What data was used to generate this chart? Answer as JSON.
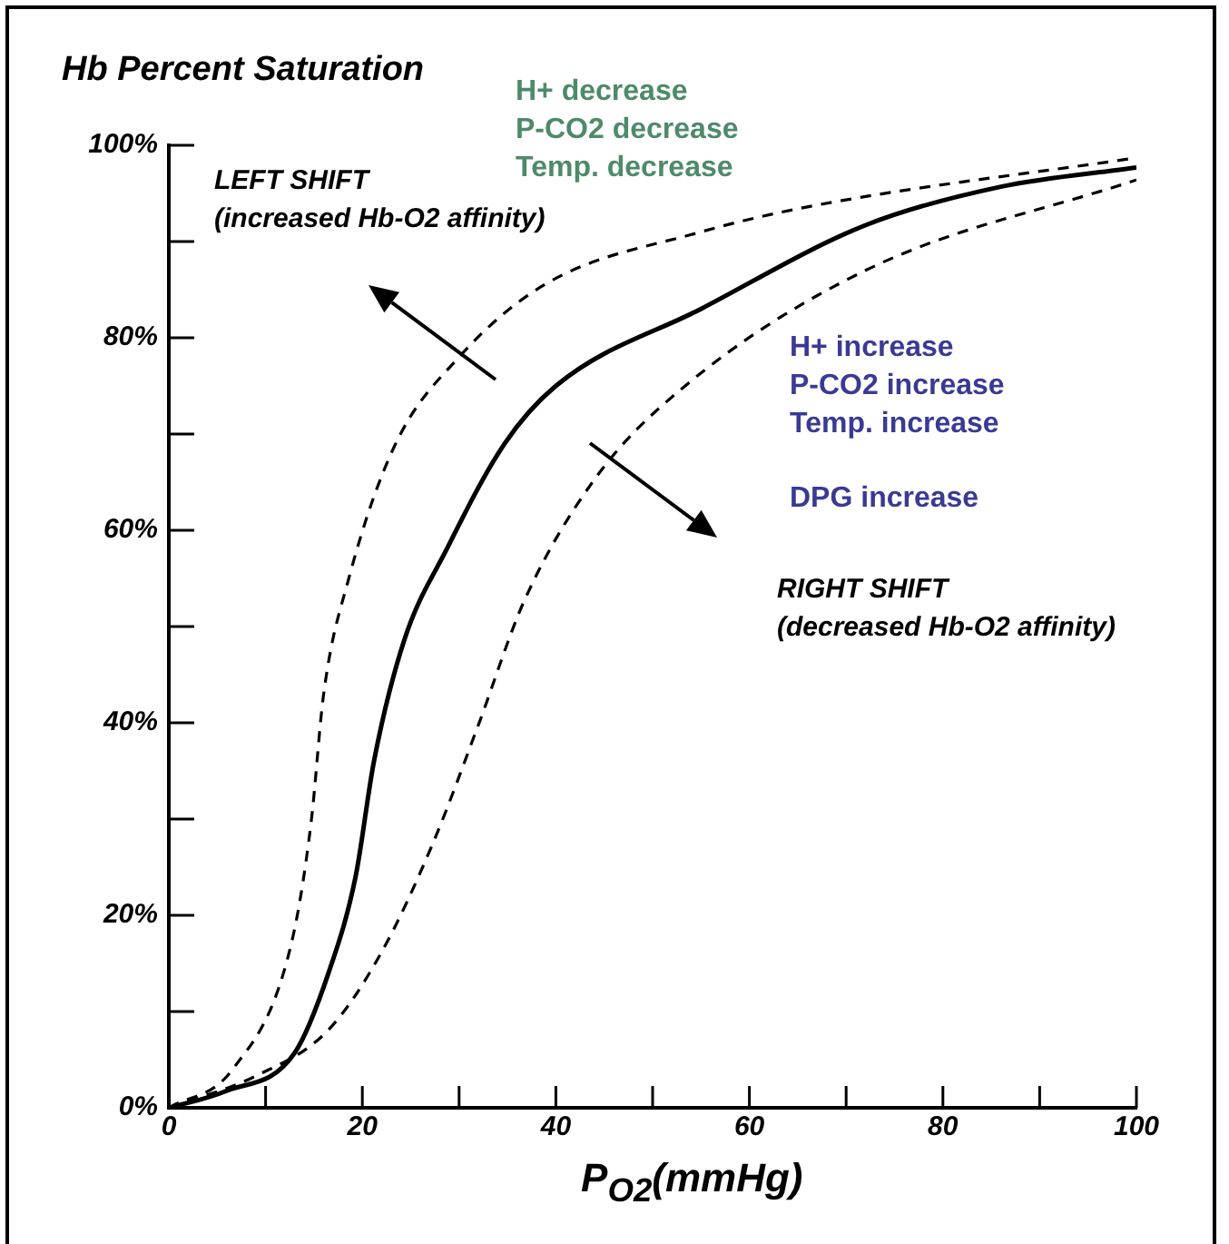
{
  "chart_data": {
    "type": "line",
    "title": "Hb Percent Saturation",
    "xlabel": "P$_{O2}$(mmHg)",
    "annotations": [
      "LEFT SHIFT\n(increased Hb-O2 affinity)",
      "H+ decrease\nP-CO2 decrease\nTemp. decrease",
      "H+ increase\nP-CO2 increase\nTemp. increase",
      "DPG increase",
      "RIGHT SHIFT\n(decreased Hb-O2 affinity)"
    ],
    "series": [
      {
        "color": "#000000",
        "line_style": "solid",
        "x": [
          0,
          5.8,
          13,
          16.5,
          19.3,
          21.2,
          24.3,
          28.7,
          34.7,
          40,
          55,
          72,
          86,
          100
        ],
        "values": [
          0,
          1.7,
          5.7,
          14,
          24,
          36,
          48.5,
          58,
          69,
          75,
          83,
          91.7,
          95.7,
          97.7
        ]
      },
      {
        "color": "#000000",
        "line_style": "dashed",
        "x": [
          0,
          6.6,
          12.6,
          14.7,
          16,
          18.6,
          23.3,
          30,
          38.8,
          55,
          66,
          100
        ],
        "values": [
          0,
          4,
          16.8,
          29.6,
          43,
          55,
          68.7,
          78,
          85.5,
          91,
          93.6,
          98.7
        ]
      },
      {
        "color": "#000000",
        "line_style": "dashed",
        "x": [
          0,
          9.2,
          16.5,
          22,
          27.3,
          32,
          36.7,
          44,
          53,
          72,
          100
        ],
        "values": [
          0,
          3.4,
          8.1,
          16.2,
          27.5,
          39.8,
          52.6,
          65.3,
          74.7,
          87,
          96.4
        ]
      }
    ],
    "xlim": [
      0,
      100
    ],
    "ylim": [
      0,
      100
    ],
    "xticks": [
      0,
      {
        "value": 10,
        "label": null
      },
      20,
      {
        "value": 30,
        "label": null
      },
      40,
      {
        "value": 50,
        "label": null
      },
      60,
      {
        "value": 70,
        "label": null
      },
      80,
      {
        "value": 90,
        "label": null
      },
      100
    ],
    "yticks": [
      {
        "value": 0,
        "label": "0%"
      },
      {
        "value": 10,
        "label": null
      },
      {
        "value": 20,
        "label": "20%"
      },
      {
        "value": 30,
        "label": null
      },
      {
        "value": 40,
        "label": "40%"
      },
      {
        "value": 50,
        "label": null
      },
      {
        "value": 60,
        "label": "60%"
      },
      {
        "value": 70,
        "label": null
      },
      {
        "value": 80,
        "label": "80%"
      },
      {
        "value": 90,
        "label": null
      },
      {
        "value": 100,
        "label": "100%"
      }
    ],
    "grid": false,
    "legend": false,
    "marker": "none"
  }
}
